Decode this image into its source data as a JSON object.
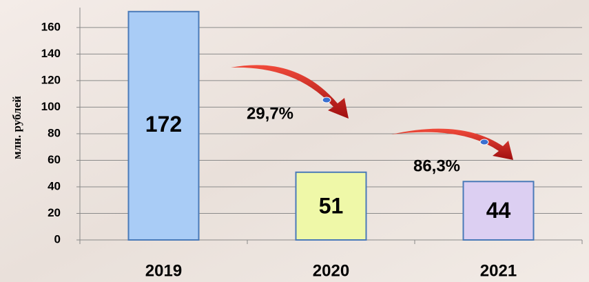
{
  "chart_data": {
    "type": "bar",
    "y_axis_label": "млн. рублей",
    "categories": [
      "2019",
      "2020",
      "2021"
    ],
    "values": [
      172,
      51,
      44
    ],
    "colors": [
      "#a9ccf6",
      "#eff8a8",
      "#dccff2"
    ],
    "ylim": [
      0,
      175
    ],
    "yticks": [
      0,
      20,
      40,
      60,
      80,
      100,
      120,
      140,
      160
    ],
    "grid": true,
    "annotations": [
      "29,7%",
      "86,3%"
    ]
  }
}
